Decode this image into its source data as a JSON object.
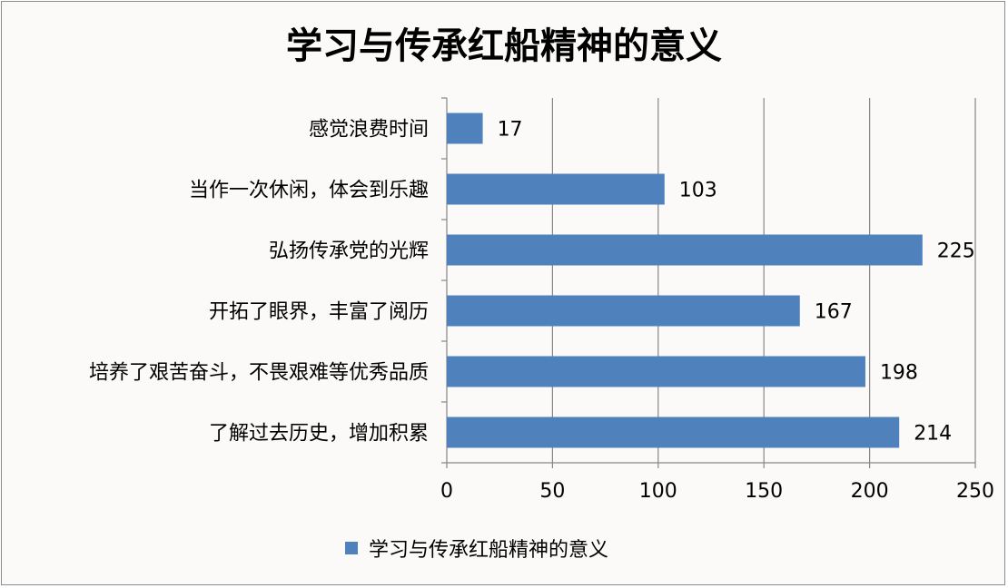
{
  "chart_data": {
    "type": "bar",
    "orientation": "horizontal",
    "title": "学习与传承红船精神的意义",
    "categories": [
      "感觉浪费时间",
      "当作一次休闲，体会到乐趣",
      "弘扬传承党的光辉",
      "开拓了眼界，丰富了阅历",
      "培养了艰苦奋斗，不畏艰难等优秀品质",
      "了解过去历史，增加积累"
    ],
    "series": [
      {
        "name": "学习与传承红船精神的意义",
        "values": [
          17,
          103,
          225,
          167,
          198,
          214
        ],
        "color": "#4f81bd"
      }
    ],
    "xlim": [
      0,
      250
    ],
    "xticks": [
      0,
      50,
      100,
      150,
      200,
      250
    ],
    "grid": "vertical",
    "legend": "bottom"
  }
}
